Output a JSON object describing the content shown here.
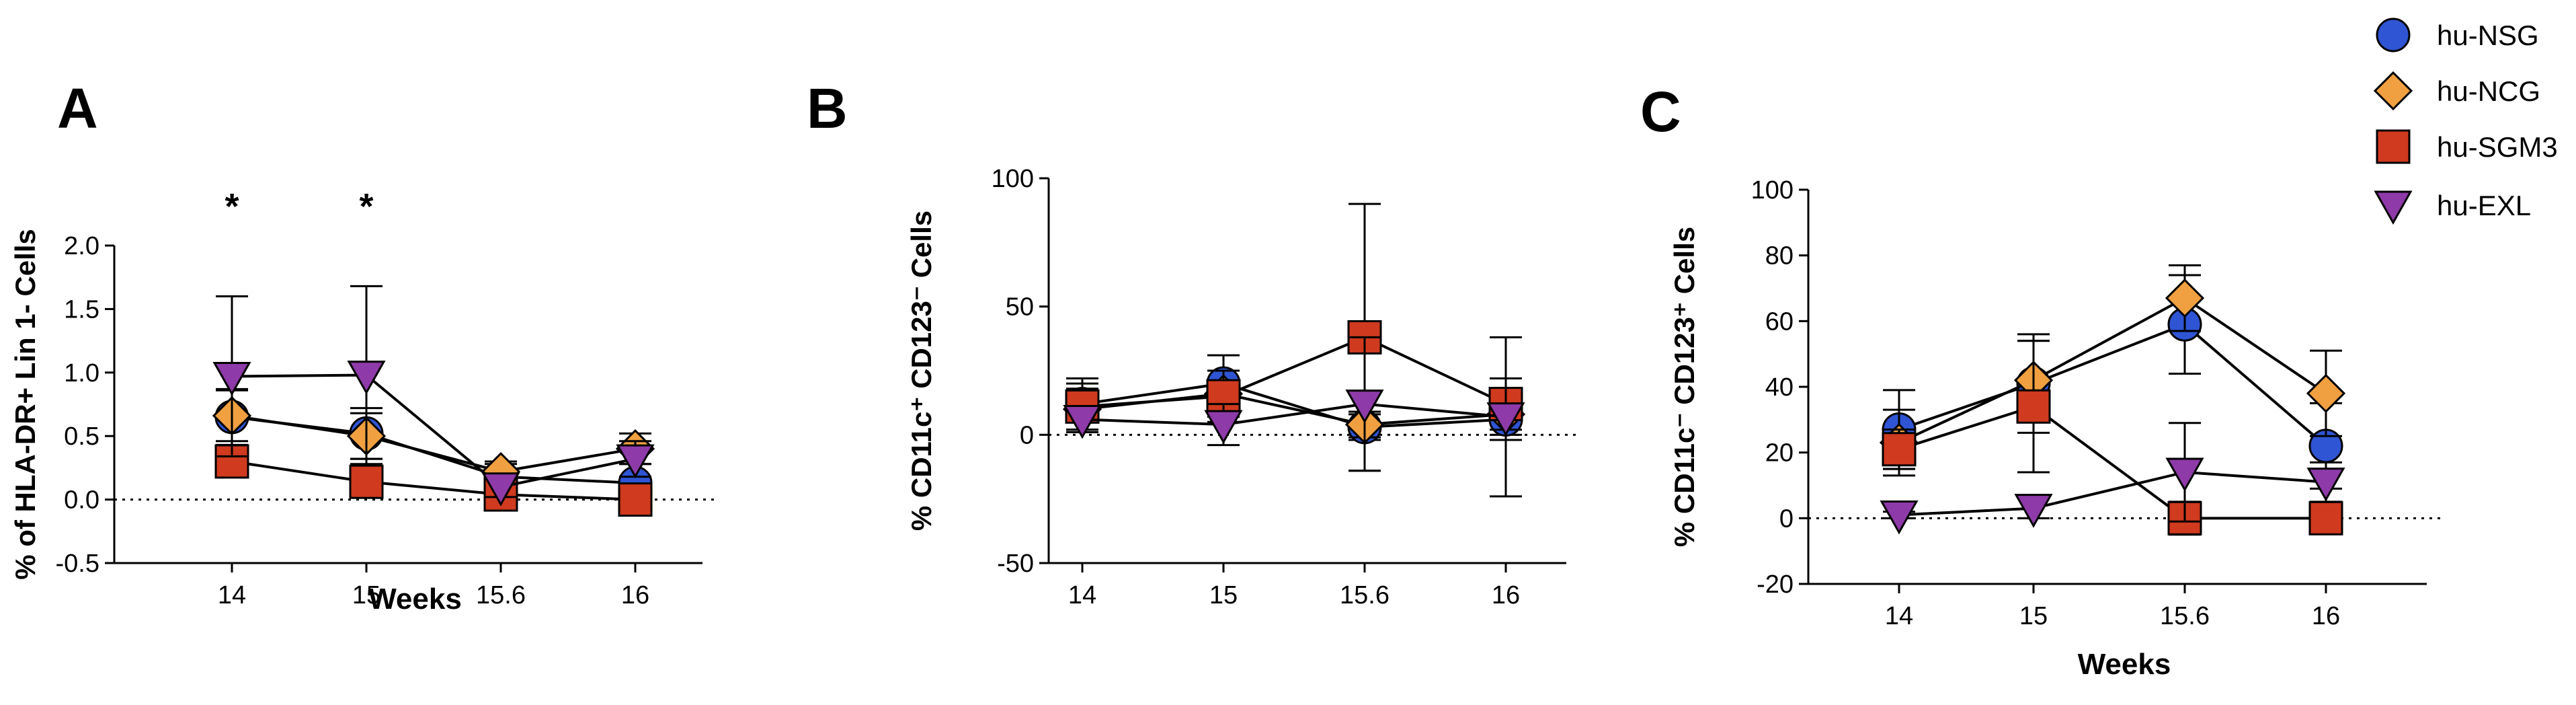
{
  "legend": {
    "entries": [
      {
        "name": "hu-NSG",
        "marker": "circle",
        "color": "#2f55d4"
      },
      {
        "name": "hu-NCG",
        "marker": "diamond",
        "color": "#f0a040"
      },
      {
        "name": "hu-SGM3",
        "marker": "square",
        "color": "#d03a1e"
      },
      {
        "name": "hu-EXL",
        "marker": "triangle-down",
        "color": "#8e3aa8"
      }
    ]
  },
  "chart_data": [
    {
      "type": "line",
      "panel_label": "A",
      "xlabel": "Weeks",
      "ylabel": "% of HLA-DR+ Lin 1- Cells",
      "categories": [
        "14",
        "15",
        "15.6",
        "16"
      ],
      "ylim": [
        -0.5,
        2.0
      ],
      "yticks": [
        -0.5,
        0.0,
        0.5,
        1.0,
        1.5,
        2.0
      ],
      "ytick_labels": [
        "-0.5",
        "0.0",
        "0.5",
        "1.0",
        "1.5",
        "2.0"
      ],
      "zero_line": true,
      "annotations": [
        {
          "category": "14",
          "y": 1.8,
          "text": "*"
        },
        {
          "category": "15",
          "y": 1.8,
          "text": "*"
        }
      ],
      "series": [
        {
          "name": "hu-NSG",
          "values": [
            0.65,
            0.52,
            0.18,
            0.13
          ],
          "errors": [
            0.22,
            0.2,
            0.1,
            0.15
          ]
        },
        {
          "name": "hu-NCG",
          "values": [
            0.66,
            0.5,
            0.22,
            0.4
          ],
          "errors": [
            0.2,
            0.18,
            0.08,
            0.12
          ]
        },
        {
          "name": "hu-SGM3",
          "values": [
            0.3,
            0.14,
            0.04,
            0.0
          ],
          "errors": [
            0.1,
            0.1,
            0.05,
            0.05
          ]
        },
        {
          "name": "hu-EXL",
          "values": [
            0.97,
            0.98,
            0.1,
            0.32
          ],
          "errors": [
            0.63,
            0.7,
            0.08,
            0.14
          ]
        }
      ]
    },
    {
      "type": "line",
      "panel_label": "B",
      "xlabel": "",
      "ylabel": "% CD11c⁺ CD123⁻ Cells",
      "categories": [
        "14",
        "15",
        "15.6",
        "16"
      ],
      "ylim": [
        -50,
        100
      ],
      "yticks": [
        -50,
        0,
        50,
        100
      ],
      "ytick_labels": [
        "-50",
        "0",
        "50",
        "100"
      ],
      "zero_line": true,
      "annotations": [],
      "series": [
        {
          "name": "hu-NSG",
          "values": [
            12,
            20,
            3,
            6
          ],
          "errors": [
            10,
            11,
            5,
            6
          ]
        },
        {
          "name": "hu-NCG",
          "values": [
            10,
            16,
            4,
            8
          ],
          "errors": [
            8,
            9,
            5,
            10
          ]
        },
        {
          "name": "hu-SGM3",
          "values": [
            11,
            15,
            38,
            12
          ],
          "errors": [
            9,
            10,
            52,
            10
          ]
        },
        {
          "name": "hu-EXL",
          "values": [
            6,
            4,
            12,
            7
          ],
          "errors": [
            5,
            8,
            26,
            31
          ]
        }
      ]
    },
    {
      "type": "line",
      "panel_label": "C",
      "xlabel": "Weeks",
      "ylabel": "% CD11c⁻ CD123⁺ Cells",
      "categories": [
        "14",
        "15",
        "15.6",
        "16"
      ],
      "ylim": [
        -20,
        100
      ],
      "yticks": [
        -20,
        0,
        20,
        40,
        60,
        80,
        100
      ],
      "ytick_labels": [
        "-20",
        "0",
        "20",
        "40",
        "60",
        "80",
        "100"
      ],
      "zero_line": true,
      "annotations": [],
      "series": [
        {
          "name": "hu-NSG",
          "values": [
            27,
            41,
            59,
            22
          ],
          "errors": [
            12,
            15,
            15,
            13
          ]
        },
        {
          "name": "hu-NCG",
          "values": [
            23,
            42,
            67,
            38
          ],
          "errors": [
            10,
            12,
            10,
            13
          ]
        },
        {
          "name": "hu-SGM3",
          "values": [
            21,
            34,
            0,
            0
          ],
          "errors": [
            6,
            20,
            5,
            3
          ]
        },
        {
          "name": "hu-EXL",
          "values": [
            1,
            3,
            14,
            11
          ],
          "errors": [
            1,
            3,
            15,
            6
          ]
        }
      ]
    }
  ]
}
